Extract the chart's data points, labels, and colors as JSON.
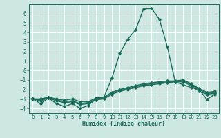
{
  "xlabel": "Humidex (Indice chaleur)",
  "xlim": [
    -0.5,
    23.5
  ],
  "ylim": [
    -4.5,
    7.0
  ],
  "xticks": [
    0,
    1,
    2,
    3,
    4,
    5,
    6,
    7,
    8,
    9,
    10,
    11,
    12,
    13,
    14,
    15,
    16,
    17,
    18,
    19,
    20,
    21,
    22,
    23
  ],
  "yticks": [
    -4,
    -3,
    -2,
    -1,
    0,
    1,
    2,
    3,
    4,
    5,
    6
  ],
  "bg_color": "#cce8e0",
  "line_color": "#1a6b5a",
  "grid_color": "#ffffff",
  "lines": [
    {
      "x": [
        0,
        1,
        2,
        3,
        4,
        5,
        6,
        7,
        8,
        9,
        10,
        11,
        12,
        13,
        14,
        15,
        16,
        17,
        18,
        19,
        20,
        21,
        22,
        23
      ],
      "y": [
        -3.0,
        -3.5,
        -2.9,
        -3.5,
        -3.8,
        -3.5,
        -4.0,
        -3.7,
        -3.0,
        -2.8,
        -0.8,
        1.8,
        3.3,
        4.3,
        6.5,
        6.55,
        5.4,
        2.5,
        -1.2,
        -1.5,
        -1.8,
        -2.0,
        -3.05,
        -2.5
      ]
    },
    {
      "x": [
        0,
        1,
        2,
        3,
        4,
        5,
        6,
        7,
        8,
        9,
        10,
        11,
        12,
        13,
        14,
        15,
        16,
        17,
        18,
        19,
        20,
        21,
        22,
        23
      ],
      "y": [
        -3.0,
        -3.2,
        -2.9,
        -3.2,
        -3.4,
        -3.3,
        -3.6,
        -3.5,
        -3.1,
        -3.0,
        -2.5,
        -2.2,
        -2.0,
        -1.8,
        -1.6,
        -1.5,
        -1.4,
        -1.3,
        -1.2,
        -1.2,
        -1.6,
        -2.2,
        -2.5,
        -2.4
      ]
    },
    {
      "x": [
        0,
        1,
        2,
        3,
        4,
        5,
        6,
        7,
        8,
        9,
        10,
        11,
        12,
        13,
        14,
        15,
        16,
        17,
        18,
        19,
        20,
        21,
        22,
        23
      ],
      "y": [
        -3.0,
        -3.1,
        -2.85,
        -3.1,
        -3.3,
        -3.2,
        -3.5,
        -3.4,
        -3.0,
        -2.9,
        -2.4,
        -2.1,
        -1.9,
        -1.7,
        -1.5,
        -1.4,
        -1.3,
        -1.2,
        -1.15,
        -1.1,
        -1.5,
        -2.0,
        -2.4,
        -2.3
      ]
    },
    {
      "x": [
        0,
        1,
        2,
        3,
        4,
        5,
        6,
        7,
        8,
        9,
        10,
        11,
        12,
        13,
        14,
        15,
        16,
        17,
        18,
        19,
        20,
        21,
        22,
        23
      ],
      "y": [
        -3.0,
        -3.0,
        -2.8,
        -3.0,
        -3.15,
        -3.0,
        -3.3,
        -3.3,
        -2.9,
        -2.8,
        -2.3,
        -2.0,
        -1.8,
        -1.6,
        -1.4,
        -1.3,
        -1.2,
        -1.1,
        -1.1,
        -1.0,
        -1.4,
        -1.9,
        -2.3,
        -2.2
      ]
    }
  ]
}
